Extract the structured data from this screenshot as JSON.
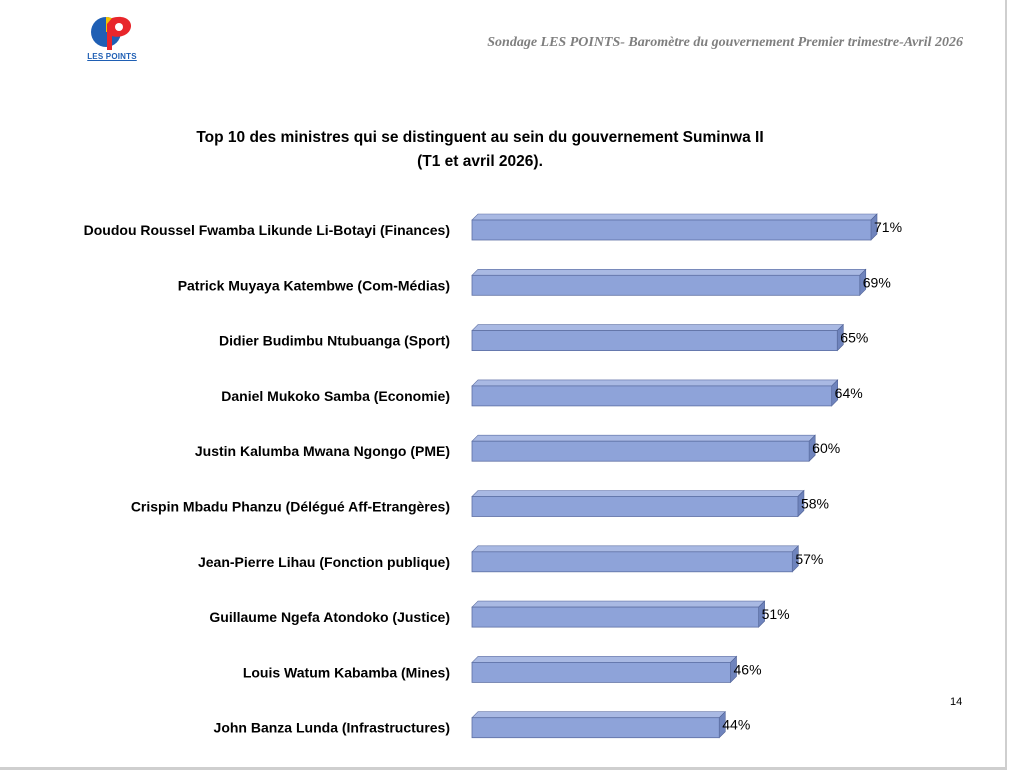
{
  "header": {
    "logo_text": "LES POINTS",
    "title": "Sondage LES POINTS- Baromètre du gouvernement Premier trimestre-Avril  2026"
  },
  "page_number": "14",
  "colors": {
    "bar_front": "#8ea3d9",
    "bar_top": "#a9b9e3",
    "bar_side": "#6f84bd",
    "logo_blue": "#1f5fb4",
    "logo_red": "#e8262b",
    "logo_yellow": "#f5c400"
  },
  "chart_data": {
    "type": "bar",
    "orientation": "horizontal",
    "title_lines": [
      "Top 10 des ministres qui se distinguent au sein du gouvernement Suminwa II",
      "(T1 et avril 2026)."
    ],
    "categories": [
      "Doudou Roussel Fwamba Likunde Li-Botayi (Finances)",
      "Patrick Muyaya Katembwe (Com-Médias)",
      "Didier Budimbu Ntubuanga (Sport)",
      "Daniel Mukoko Samba (Economie)",
      "Justin Kalumba Mwana Ngongo (PME)",
      "Crispin Mbadu Phanzu (Délégué Aff-Etrangères)",
      "Jean-Pierre Lihau (Fonction publique)",
      "Guillaume Ngefa Atondoko (Justice)",
      "Louis Watum Kabamba (Mines)",
      "John Banza Lunda (Infrastructures)"
    ],
    "values": [
      71,
      69,
      65,
      64,
      60,
      58,
      57,
      51,
      46,
      44
    ],
    "data_labels": [
      "71%",
      "69%",
      "65%",
      "64%",
      "60%",
      "58%",
      "57%",
      "51%",
      "46%",
      "44%"
    ],
    "unit": "%",
    "xlim": [
      0,
      71
    ],
    "style": "3d",
    "grid": false,
    "legend": "none"
  }
}
